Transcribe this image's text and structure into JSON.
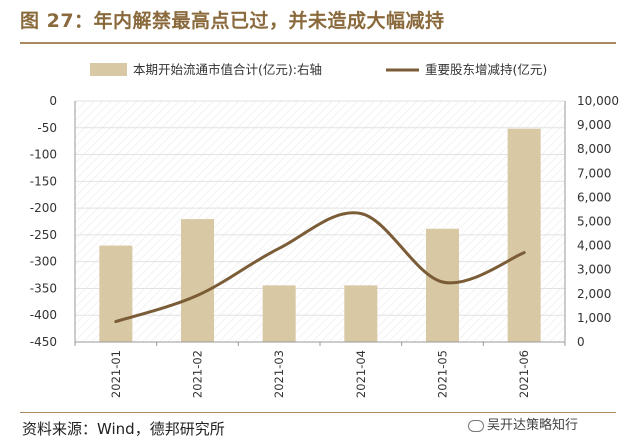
{
  "title": "图 27：年内解禁最高点已过，并未造成大幅减持",
  "source": "资料来源：Wind，德邦研究所",
  "watermark": "吴开达策略知行",
  "colors": {
    "bar": "#d8c8a3",
    "line": "#7a5c37",
    "accent": "#8a6a3c",
    "grid": "#e2e2e2"
  },
  "chart_data": {
    "type": "bar+line",
    "categories": [
      "2021-01",
      "2021-02",
      "2021-03",
      "2021-04",
      "2021-05",
      "2021-06"
    ],
    "series": [
      {
        "name": "本期开始流通市值合计(亿元):右轴",
        "type": "bar",
        "axis": "right",
        "values": [
          4000,
          5100,
          2350,
          2350,
          4700,
          8850
        ]
      },
      {
        "name": "重要股东增减持(亿元)",
        "type": "line",
        "axis": "left",
        "values": [
          -412,
          -363,
          -275,
          -210,
          -338,
          -283
        ]
      }
    ],
    "left_axis": {
      "min": -450,
      "max": 0,
      "step": 50,
      "ticks": [
        "0",
        "-50",
        "-100",
        "-150",
        "-200",
        "-250",
        "-300",
        "-350",
        "-400",
        "-450"
      ]
    },
    "right_axis": {
      "min": 0,
      "max": 10000,
      "step": 1000,
      "ticks": [
        "10,000",
        "9,000",
        "8,000",
        "7,000",
        "6,000",
        "5,000",
        "4,000",
        "3,000",
        "2,000",
        "1,000",
        "0"
      ]
    },
    "legend_position": "top",
    "grid": true
  }
}
